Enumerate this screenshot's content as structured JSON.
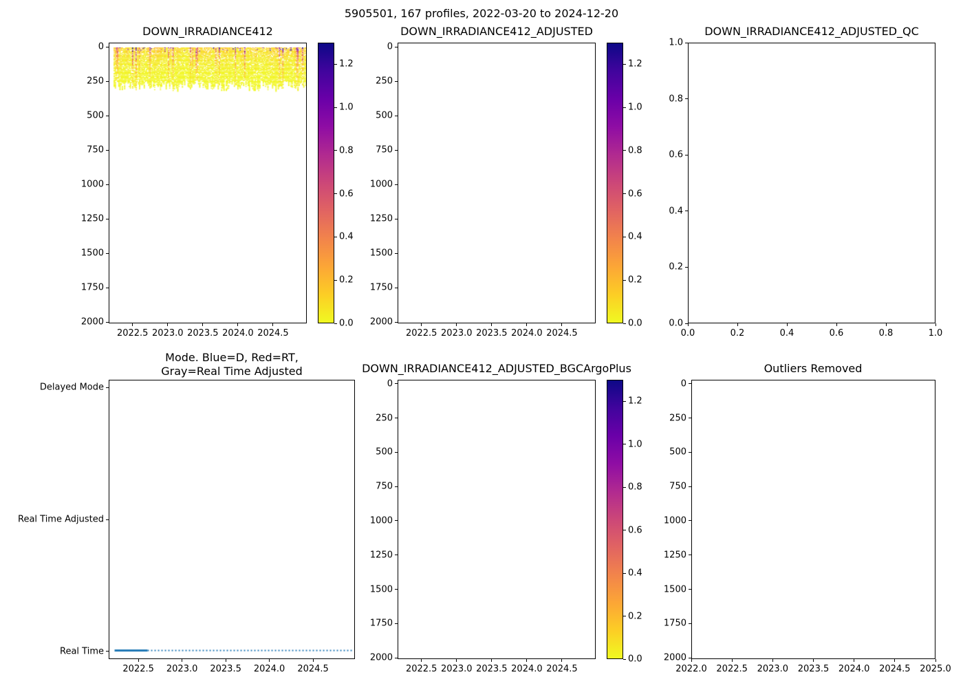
{
  "figure": {
    "suptitle": "5905501, 167 profiles, 2022-03-20 to 2024-12-20",
    "background": "#ffffff"
  },
  "colors": {
    "axis": "#000000",
    "mode_line_blue": "#1f77b4",
    "colormap_name": "plasma_reversed",
    "plasma_stops": [
      {
        "t": 0.0,
        "hex": "#0d0887"
      },
      {
        "t": 0.1,
        "hex": "#41049d"
      },
      {
        "t": 0.2,
        "hex": "#6a00a8"
      },
      {
        "t": 0.3,
        "hex": "#8f0da4"
      },
      {
        "t": 0.4,
        "hex": "#b12a90"
      },
      {
        "t": 0.5,
        "hex": "#cc4778"
      },
      {
        "t": 0.6,
        "hex": "#e16462"
      },
      {
        "t": 0.7,
        "hex": "#f2844b"
      },
      {
        "t": 0.8,
        "hex": "#fca636"
      },
      {
        "t": 0.9,
        "hex": "#fcce25"
      },
      {
        "t": 1.0,
        "hex": "#f0f921"
      }
    ]
  },
  "chart_data": [
    {
      "id": "down-irradiance412",
      "type": "heatmap",
      "title": "DOWN_IRRADIANCE412",
      "x_range": [
        2022.16,
        2024.98
      ],
      "y_range": [
        -30,
        2010
      ],
      "xlabel": "",
      "ylabel": "",
      "xticks": {
        "values": [
          2022.5,
          2023.0,
          2023.5,
          2024.0,
          2024.5
        ],
        "labels": [
          "2022.5",
          "2023.0",
          "2023.5",
          "2024.0",
          "2024.5"
        ]
      },
      "yticks": {
        "values": [
          0,
          250,
          500,
          750,
          1000,
          1250,
          1500,
          1750,
          2000
        ],
        "labels": [
          "0",
          "250",
          "500",
          "750",
          "1000",
          "1250",
          "1500",
          "1750",
          "2000"
        ]
      },
      "colorbar": {
        "vmin": 0.0,
        "vmax": 1.3,
        "ticks": {
          "values": [
            0.0,
            0.2,
            0.4,
            0.6,
            0.8,
            1.0,
            1.2
          ],
          "labels": [
            "0.0",
            "0.2",
            "0.4",
            "0.6",
            "0.8",
            "1.0",
            "1.2"
          ]
        }
      },
      "heatmap": {
        "n_profiles": 167,
        "time_start": 2022.22,
        "time_end": 2024.97,
        "min_profile_depth_m": 240,
        "max_data_depth_m": 320,
        "attenuation_depth_m": 90,
        "typical_surface_value": 0.1,
        "max_value": 1.3,
        "gap_fraction": 0.18,
        "surface_spike_fraction": 0.06,
        "depth_step_m": 6,
        "seed": 42,
        "description": "Irradiance values present only in upper ~0-300 m for each of 167 profiles; mostly near 0 (yellow) with scattered high values up to ~1.3 (red/dark) near the surface; below ~300 m no data (white)."
      }
    },
    {
      "id": "down-irradiance412-adjusted",
      "type": "heatmap",
      "title": "DOWN_IRRADIANCE412_ADJUSTED",
      "x_range": [
        2022.16,
        2024.98
      ],
      "y_range": [
        -30,
        2010
      ],
      "xticks": {
        "values": [
          2022.5,
          2023.0,
          2023.5,
          2024.0,
          2024.5
        ],
        "labels": [
          "2022.5",
          "2023.0",
          "2023.5",
          "2024.0",
          "2024.5"
        ]
      },
      "yticks": {
        "values": [
          0,
          250,
          500,
          750,
          1000,
          1250,
          1500,
          1750,
          2000
        ],
        "labels": [
          "0",
          "250",
          "500",
          "750",
          "1000",
          "1250",
          "1500",
          "1750",
          "2000"
        ]
      },
      "colorbar": {
        "vmin": 0.0,
        "vmax": 1.3,
        "ticks": {
          "values": [
            0.0,
            0.2,
            0.4,
            0.6,
            0.8,
            1.0,
            1.2
          ],
          "labels": [
            "0.0",
            "0.2",
            "0.4",
            "0.6",
            "0.8",
            "1.0",
            "1.2"
          ]
        }
      },
      "heatmap": null,
      "note": "empty - no adjusted data plotted"
    },
    {
      "id": "down-irradiance412-adjusted-qc",
      "type": "empty",
      "title": "DOWN_IRRADIANCE412_ADJUSTED_QC",
      "x_range": [
        0.0,
        1.0
      ],
      "y_range": [
        1.0,
        0.0
      ],
      "xticks": {
        "values": [
          0.0,
          0.2,
          0.4,
          0.6,
          0.8,
          1.0
        ],
        "labels": [
          "0.0",
          "0.2",
          "0.4",
          "0.6",
          "0.8",
          "1.0"
        ]
      },
      "yticks": {
        "values": [
          0.0,
          0.2,
          0.4,
          0.6,
          0.8,
          1.0
        ],
        "labels": [
          "0.0",
          "0.2",
          "0.4",
          "0.6",
          "0.8",
          "1.0"
        ]
      },
      "note": "empty axes - no QC data plotted"
    },
    {
      "id": "mode",
      "type": "line",
      "title": "Mode. Blue=D, Red=RT,\nGray=Real Time Adjusted",
      "x_range": [
        2022.16,
        2024.98
      ],
      "y_range": [
        2.06,
        -0.06
      ],
      "xticks": {
        "values": [
          2022.5,
          2023.0,
          2023.5,
          2024.0,
          2024.5
        ],
        "labels": [
          "2022.5",
          "2023.0",
          "2023.5",
          "2024.0",
          "2024.5"
        ]
      },
      "yticks": {
        "values": [
          2,
          1,
          0
        ],
        "labels": [
          "Delayed Mode",
          "Real Time Adjusted",
          "Real Time"
        ]
      },
      "mode_series": {
        "label": "Real Time",
        "y_value": 0,
        "x_start": 2022.22,
        "solid_until": 2022.6,
        "x_end": 2024.97,
        "color": "#1f77b4",
        "style": "solid segment then fine dashes",
        "description": "All 167 profiles are in Real Time mode for the whole period."
      }
    },
    {
      "id": "down-irradiance412-adjusted-bgcargoplus",
      "type": "heatmap",
      "title": "DOWN_IRRADIANCE412_ADJUSTED_BGCArgoPlus",
      "x_range": [
        2022.16,
        2024.98
      ],
      "y_range": [
        -30,
        2010
      ],
      "xticks": {
        "values": [
          2022.5,
          2023.0,
          2023.5,
          2024.0,
          2024.5
        ],
        "labels": [
          "2022.5",
          "2023.0",
          "2023.5",
          "2024.0",
          "2024.5"
        ]
      },
      "yticks": {
        "values": [
          0,
          250,
          500,
          750,
          1000,
          1250,
          1500,
          1750,
          2000
        ],
        "labels": [
          "0",
          "250",
          "500",
          "750",
          "1000",
          "1250",
          "1500",
          "1750",
          "2000"
        ]
      },
      "colorbar": {
        "vmin": 0.0,
        "vmax": 1.3,
        "ticks": {
          "values": [
            0.0,
            0.2,
            0.4,
            0.6,
            0.8,
            1.0,
            1.2
          ],
          "labels": [
            "0.0",
            "0.2",
            "0.4",
            "0.6",
            "0.8",
            "1.0",
            "1.2"
          ]
        }
      },
      "heatmap": null,
      "note": "empty - no BGCArgoPlus adjusted data plotted"
    },
    {
      "id": "outliers-removed",
      "type": "empty",
      "title": "Outliers Removed",
      "x_range": [
        2022.0,
        2025.0
      ],
      "y_range": [
        -30,
        2010
      ],
      "xticks": {
        "values": [
          2022.0,
          2022.5,
          2023.0,
          2023.5,
          2024.0,
          2024.5,
          2025.0
        ],
        "labels": [
          "2022.0",
          "2022.5",
          "2023.0",
          "2023.5",
          "2024.0",
          "2024.5",
          "2025.0"
        ]
      },
      "yticks": {
        "values": [
          0,
          250,
          500,
          750,
          1000,
          1250,
          1500,
          1750,
          2000
        ],
        "labels": [
          "0",
          "250",
          "500",
          "750",
          "1000",
          "1250",
          "1500",
          "1750",
          "2000"
        ]
      },
      "note": "empty axes - no outlier-removed data plotted"
    }
  ]
}
